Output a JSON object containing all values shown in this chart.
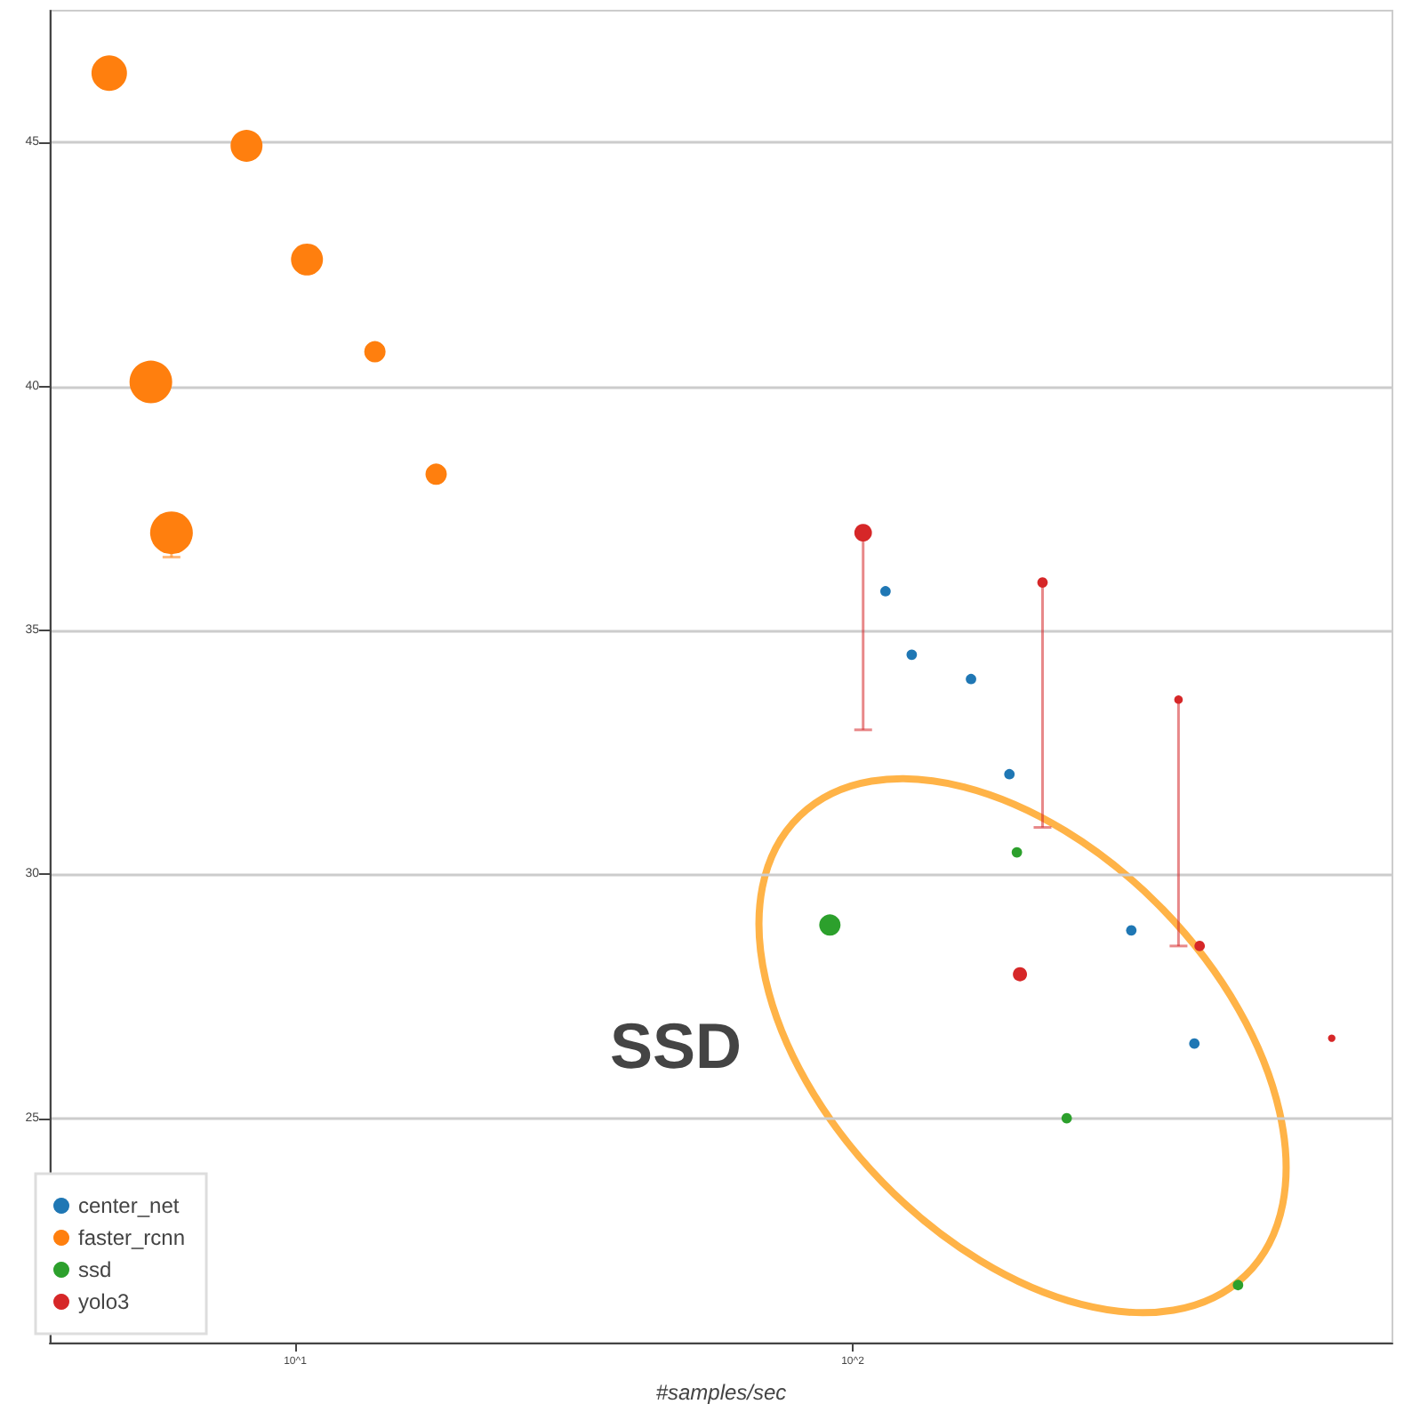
{
  "chart_data": {
    "type": "bubble",
    "xlabel": "#samples/sec",
    "log": "x",
    "xlim": [
      3.63,
      929
    ],
    "ylim": [
      20.4,
      47.7
    ],
    "xticks": [
      {
        "value": 10,
        "label": "10^1"
      },
      {
        "value": 100,
        "label": "10^2"
      }
    ],
    "yticks": [
      25,
      30,
      35,
      40,
      45
    ],
    "grid": "y",
    "legend": "bottom left",
    "marker": "circle",
    "annotations": [
      "SSD"
    ],
    "series": [
      {
        "name": "center_net",
        "color": "#1f77b4",
        "x": [
          114.5,
          127.6,
          163,
          191,
          316,
          410
        ],
        "values": [
          35.8,
          34.5,
          34.0,
          32.05,
          28.85,
          26.53
        ],
        "sizes": [
          0.06,
          0.06,
          0.06,
          0.06,
          0.06,
          0.06
        ]
      },
      {
        "name": "faster_rcnn",
        "color": "#ff7f0e",
        "x": [
          4.64,
          8.18,
          10.5,
          13.9,
          5.51,
          17.9,
          6.0
        ],
        "values": [
          46.42,
          44.93,
          42.6,
          40.71,
          40.09,
          38.2,
          37.0
        ],
        "sizes": [
          0.69,
          0.56,
          0.56,
          0.25,
          1,
          0.25,
          1
        ],
        "errors": [
          null,
          null,
          null,
          null,
          null,
          null,
          [
            36.5,
            37.0
          ]
        ]
      },
      {
        "name": "ssd",
        "color": "#2ca02c",
        "x": [
          91,
          197,
          242,
          491
        ],
        "values": [
          28.96,
          30.45,
          25.0,
          21.58
        ],
        "sizes": [
          0.25,
          0.06,
          0.06,
          0.06
        ]
      },
      {
        "name": "yolo3",
        "color": "#d62728",
        "x": [
          104.4,
          219,
          384,
          199.5,
          419,
          723
        ],
        "values": [
          37.0,
          35.98,
          33.58,
          27.95,
          28.53,
          26.64
        ],
        "sizes": [
          0.17,
          0.06,
          0.04,
          0.11,
          0.06,
          0.03
        ],
        "errors": [
          [
            32.96,
            37.0
          ],
          [
            30.96,
            35.98
          ],
          [
            28.53,
            33.58
          ],
          null,
          null,
          null
        ]
      }
    ]
  }
}
